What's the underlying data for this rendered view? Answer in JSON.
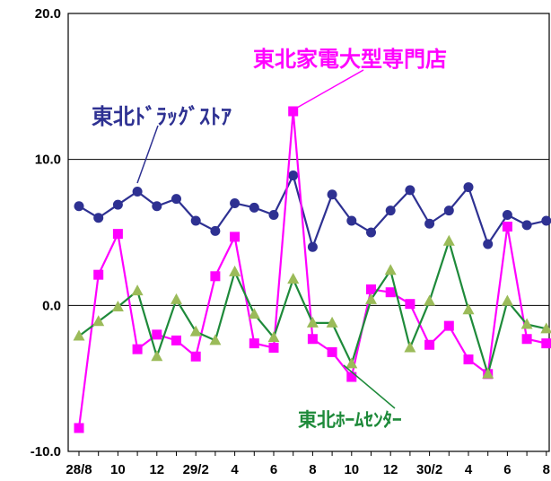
{
  "chart_data": {
    "type": "line",
    "ylim": [
      -10,
      20
    ],
    "y_ticks": [
      "20.0",
      "10.0",
      "0.0",
      "-10.0"
    ],
    "y_tick_values": [
      20,
      10,
      0,
      -10
    ],
    "x_labels": [
      "28/8",
      "10",
      "12",
      "29/2",
      "4",
      "6",
      "8",
      "10",
      "12",
      "30/2",
      "4",
      "6",
      "8"
    ],
    "x_label_indices": [
      0,
      2,
      4,
      6,
      8,
      10,
      12,
      14,
      16,
      18,
      20,
      22,
      24
    ],
    "grid": "horizontal",
    "series": [
      {
        "name": "東北ﾄﾞﾗｯｸﾞｽﾄｱ",
        "color": "#2e3192",
        "marker": "circle",
        "values": [
          6.8,
          6.0,
          6.9,
          7.8,
          6.8,
          7.3,
          5.8,
          5.1,
          7.0,
          6.7,
          6.2,
          8.9,
          4.0,
          7.6,
          5.8,
          5.0,
          6.5,
          7.9,
          5.6,
          6.5,
          8.1,
          4.2,
          6.2,
          5.5,
          5.8
        ]
      },
      {
        "name": "東北家電大型専門店",
        "color": "#ff00ff",
        "marker": "square",
        "values": [
          -8.4,
          2.1,
          4.9,
          -3.0,
          -2.0,
          -2.4,
          -3.5,
          2.0,
          4.7,
          -2.6,
          -2.9,
          13.3,
          -2.3,
          -3.2,
          -4.9,
          1.1,
          0.9,
          0.1,
          -2.7,
          -1.4,
          -3.7,
          -4.7,
          5.4,
          -2.3,
          -2.6
        ]
      },
      {
        "name": "東北ﾎｰﾑｾﾝﾀｰ",
        "color": "#1e8a3a",
        "marker_color": "#9bbb59",
        "marker": "triangle",
        "values": [
          -2.1,
          -1.1,
          -0.1,
          1.0,
          -3.5,
          0.4,
          -1.8,
          -2.4,
          2.3,
          -0.6,
          -2.2,
          1.8,
          -1.2,
          -1.2,
          -4.0,
          0.4,
          2.4,
          -2.9,
          0.3,
          4.4,
          -0.3,
          -4.7,
          0.3,
          -1.3,
          -1.6
        ]
      }
    ]
  }
}
